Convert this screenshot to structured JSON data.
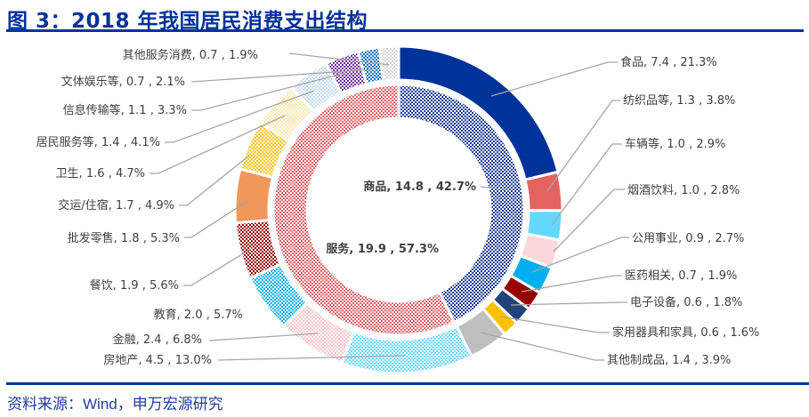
{
  "header": {
    "title": "图 3：2018 年我国居民消费支出结构"
  },
  "footer": {
    "source": "资料来源：Wind，申万宏源研究"
  },
  "chart_data": {
    "type": "pie",
    "subtype": "nested-donut",
    "title": "图 3：2018 年我国居民消费支出结构",
    "inner_ring": [
      {
        "name": "商品",
        "value": 14.8,
        "percent": "42.7%",
        "label": "商品, 14.8 , 42.7%",
        "color": "#1f3f99",
        "pattern": true
      },
      {
        "name": "服务",
        "value": 19.9,
        "percent": "57.3%",
        "label": "服务, 19.9 , 57.3%",
        "color": "#e06066",
        "pattern": true
      }
    ],
    "outer_ring": [
      {
        "name": "食品",
        "value": 7.4,
        "percent": "21.3%",
        "label": "食品, 7.4 , 21.3%",
        "color": "#003399",
        "pattern": false
      },
      {
        "name": "纺织品等",
        "value": 1.3,
        "percent": "3.8%",
        "label": "纺织品等, 1.3 , 3.8%",
        "color": "#e46262",
        "pattern": false
      },
      {
        "name": "车辆等",
        "value": 1.0,
        "percent": "2.9%",
        "label": "车辆等, 1.0 , 2.9%",
        "color": "#66d8ff",
        "pattern": false
      },
      {
        "name": "烟酒饮料",
        "value": 1.0,
        "percent": "2.8%",
        "label": "烟酒饮料, 1.0 , 2.8%",
        "color": "#fad7d9",
        "pattern": false
      },
      {
        "name": "公用事业",
        "value": 0.9,
        "percent": "2.7%",
        "label": "公用事业, 0.9 , 2.7%",
        "color": "#00b0f0",
        "pattern": false
      },
      {
        "name": "医药相关",
        "value": 0.7,
        "percent": "1.9%",
        "label": "医药相关, 0.7 , 1.9%",
        "color": "#990000",
        "pattern": false
      },
      {
        "name": "电子设备",
        "value": 0.6,
        "percent": "1.8%",
        "label": "电子设备, 0.6 , 1.8%",
        "color": "#22427a",
        "pattern": false
      },
      {
        "name": "家用器具和家具",
        "value": 0.6,
        "percent": "1.6%",
        "label": "家用器具和家具, 0.6 , 1.6%",
        "color": "#ffc000",
        "pattern": false
      },
      {
        "name": "其他制成品",
        "value": 1.4,
        "percent": "3.9%",
        "label": "其他制成品, 1.4 , 3.9%",
        "color": "#bfbfbf",
        "pattern": false
      },
      {
        "name": "房地产",
        "value": 4.5,
        "percent": "13.0%",
        "label": "房地产, 4.5 , 13.0%",
        "color": "#66d8ff",
        "pattern": true
      },
      {
        "name": "金融",
        "value": 2.4,
        "percent": "6.8%",
        "label": "金融, 2.4 , 6.8%",
        "color": "#f7c6c9",
        "pattern": true
      },
      {
        "name": "教育",
        "value": 2.0,
        "percent": "5.7%",
        "label": "教育, 2.0 , 5.7%",
        "color": "#00b0f0",
        "pattern": true
      },
      {
        "name": "餐饮",
        "value": 1.9,
        "percent": "5.6%",
        "label": "餐饮, 1.9 , 5.6%",
        "color": "#990000",
        "pattern": true
      },
      {
        "name": "批发零售",
        "value": 1.8,
        "percent": "5.3%",
        "label": "批发零售, 1.8 , 5.3%",
        "color": "#f0985a",
        "pattern": false
      },
      {
        "name": "交运/住宿",
        "value": 1.7,
        "percent": "4.9%",
        "label": "交运/住宿, 1.7 , 4.9%",
        "color": "#ffc000",
        "pattern": true
      },
      {
        "name": "卫生",
        "value": 1.6,
        "percent": "4.7%",
        "label": "卫生, 1.6 , 4.7%",
        "color": "#ffe8b0",
        "pattern": true
      },
      {
        "name": "居民服务等",
        "value": 1.4,
        "percent": "4.1%",
        "label": "居民服务等, 1.4 , 4.1%",
        "color": "#c5dcf2",
        "pattern": true
      },
      {
        "name": "信息传输等",
        "value": 1.1,
        "percent": "3.3%",
        "label": "信息传输等, 1.1 , 3.3%",
        "color": "#7030a0",
        "pattern": true
      },
      {
        "name": "文体娱乐等",
        "value": 0.7,
        "percent": "2.1%",
        "label": "文体娱乐等, 0.7 , 2.1%",
        "color": "#0070c0",
        "pattern": true
      },
      {
        "name": "其他服务消费",
        "value": 0.7,
        "percent": "1.9%",
        "label": "其他服务消费, 0.7 , 1.9%",
        "color": "#d9d9d9",
        "pattern": true
      }
    ],
    "legend": "none",
    "leader_line_color": "#a6a6a6",
    "label_color": "#404040"
  }
}
